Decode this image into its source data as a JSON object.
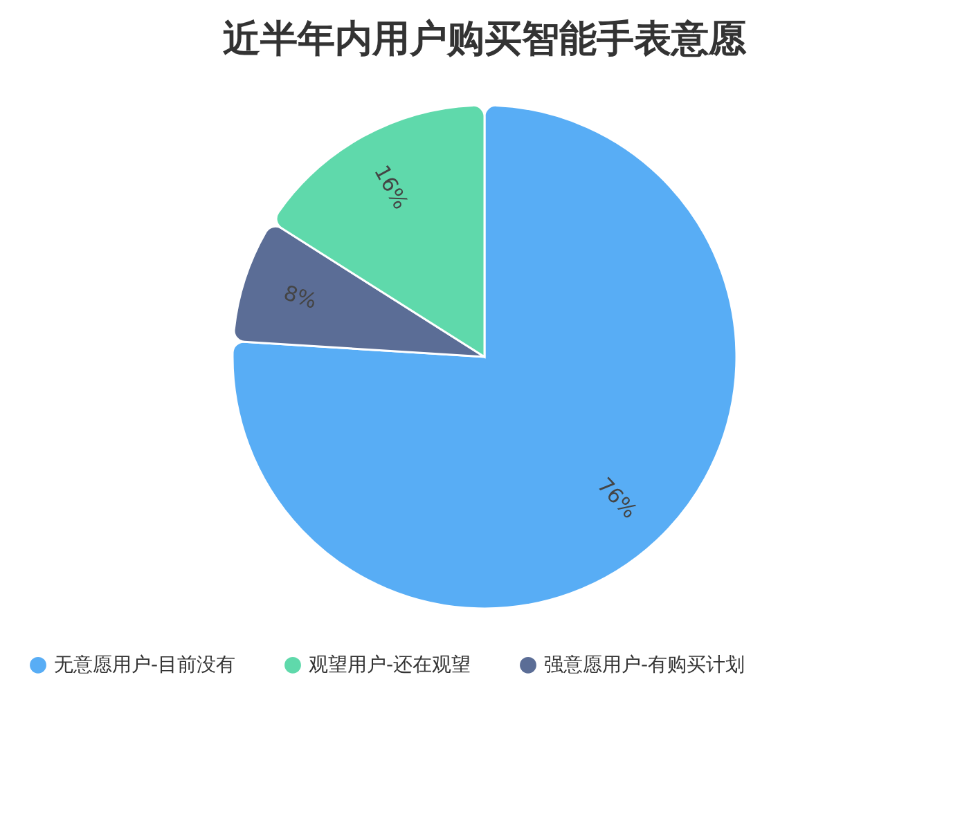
{
  "chart_data": {
    "type": "pie",
    "title": "近半年内用户购买智能手表意愿",
    "categories": [
      "无意愿用户-目前没有",
      "强意愿用户-有购买计划",
      "观望用户-还在观望"
    ],
    "values": [
      76,
      8,
      16
    ],
    "colors": [
      "#58adf5",
      "#5b6d96",
      "#5fd9ab"
    ],
    "value_labels": [
      "76%",
      "8%",
      "16%"
    ],
    "legend": "bottom"
  }
}
